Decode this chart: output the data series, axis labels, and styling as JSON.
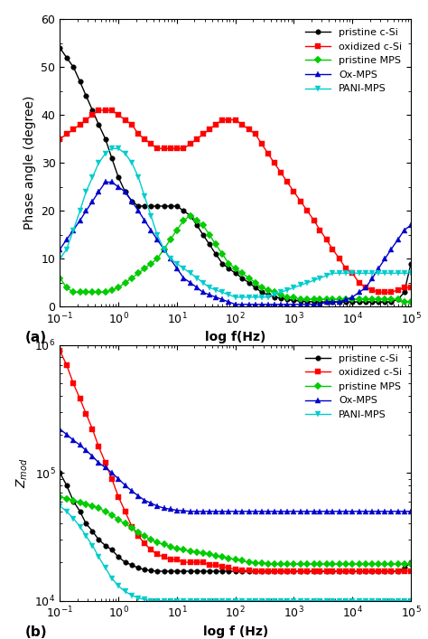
{
  "title_a": "(a)",
  "title_b": "(b)",
  "xlabel_a": "log f(Hz)",
  "xlabel_b": "log f (Hz)",
  "ylabel_a": "Phase angle (degree)",
  "ylabel_b": "Z_mod",
  "xlim": [
    0.1,
    100000.0
  ],
  "ylim_a": [
    0,
    60
  ],
  "ylim_b": [
    10000.0,
    1000000.0
  ],
  "legend_labels": [
    "pristine c-Si",
    "oxidized c-Si",
    "pristine MPS",
    "Ox-MPS",
    "PANI-MPS"
  ],
  "colors": [
    "#000000",
    "#ff0000",
    "#00cc00",
    "#0000cc",
    "#00cccc"
  ],
  "markers_a": [
    "o",
    "s",
    "D",
    "^",
    "v"
  ],
  "phase_pristine_cSi_x": [
    0.1,
    0.13,
    0.17,
    0.22,
    0.28,
    0.36,
    0.46,
    0.6,
    0.77,
    1.0,
    1.3,
    1.7,
    2.2,
    2.8,
    3.6,
    4.6,
    6.0,
    7.7,
    10,
    13,
    17,
    22,
    28,
    36,
    46,
    60,
    77,
    100,
    130,
    170,
    220,
    280,
    360,
    460,
    600,
    770,
    1000,
    1300,
    1700,
    2200,
    2800,
    3600,
    4600,
    6000,
    7700,
    10000,
    13000,
    17000,
    22000,
    28000,
    36000,
    46000,
    60000,
    77000,
    100000
  ],
  "phase_pristine_cSi_y": [
    54,
    52,
    50,
    47,
    44,
    41,
    38,
    35,
    31,
    27,
    24,
    22,
    21,
    21,
    21,
    21,
    21,
    21,
    21,
    20,
    19,
    17,
    15,
    13,
    11,
    9,
    8,
    7,
    6,
    5,
    4,
    3,
    2.5,
    2,
    1.8,
    1.5,
    1.3,
    1.2,
    1.1,
    1.0,
    1.0,
    1.0,
    1.0,
    1.0,
    1.0,
    1.0,
    1.0,
    1.0,
    1.0,
    1.0,
    1.0,
    1.0,
    1.5,
    3,
    9
  ],
  "phase_oxidized_cSi_x": [
    0.1,
    0.13,
    0.17,
    0.22,
    0.28,
    0.36,
    0.46,
    0.6,
    0.77,
    1.0,
    1.3,
    1.7,
    2.2,
    2.8,
    3.6,
    4.6,
    6.0,
    7.7,
    10,
    13,
    17,
    22,
    28,
    36,
    46,
    60,
    77,
    100,
    130,
    170,
    220,
    280,
    360,
    460,
    600,
    770,
    1000,
    1300,
    1700,
    2200,
    2800,
    3600,
    4600,
    6000,
    7700,
    10000,
    13000,
    17000,
    22000,
    28000,
    36000,
    46000,
    60000,
    77000,
    100000
  ],
  "phase_oxidized_cSi_y": [
    35,
    36,
    37,
    38,
    39,
    40,
    41,
    41,
    41,
    40,
    39,
    38,
    36,
    35,
    34,
    33,
    33,
    33,
    33,
    33,
    34,
    35,
    36,
    37,
    38,
    39,
    39,
    39,
    38,
    37,
    36,
    34,
    32,
    30,
    28,
    26,
    24,
    22,
    20,
    18,
    16,
    14,
    12,
    10,
    8,
    7,
    5,
    4,
    3.5,
    3,
    3,
    3,
    3.5,
    4,
    4
  ],
  "phase_pristine_MPS_x": [
    0.1,
    0.13,
    0.17,
    0.22,
    0.28,
    0.36,
    0.46,
    0.6,
    0.77,
    1.0,
    1.3,
    1.7,
    2.2,
    2.8,
    3.6,
    4.6,
    6.0,
    7.7,
    10,
    13,
    17,
    22,
    28,
    36,
    46,
    60,
    77,
    100,
    130,
    170,
    220,
    280,
    360,
    460,
    600,
    770,
    1000,
    1300,
    1700,
    2200,
    2800,
    3600,
    4600,
    6000,
    7700,
    10000,
    13000,
    17000,
    22000,
    28000,
    36000,
    46000,
    60000,
    77000,
    100000
  ],
  "phase_pristine_MPS_y": [
    6,
    4,
    3,
    3,
    3,
    3,
    3,
    3,
    3.5,
    4,
    5,
    6,
    7,
    8,
    9,
    10,
    12,
    14,
    16,
    18,
    19,
    18,
    17,
    15,
    13,
    11,
    9,
    8,
    7,
    6,
    5,
    4,
    3.5,
    3,
    2.5,
    2,
    2,
    1.5,
    1.5,
    1.5,
    1.5,
    1.5,
    1.5,
    1.5,
    1.5,
    1.5,
    1.5,
    1.5,
    1.5,
    1.5,
    1.5,
    1.5,
    1.5,
    1,
    1
  ],
  "phase_OxMPS_x": [
    0.1,
    0.13,
    0.17,
    0.22,
    0.28,
    0.36,
    0.46,
    0.6,
    0.77,
    1.0,
    1.3,
    1.7,
    2.2,
    2.8,
    3.6,
    4.6,
    6.0,
    7.7,
    10,
    13,
    17,
    22,
    28,
    36,
    46,
    60,
    77,
    100,
    130,
    170,
    220,
    280,
    360,
    460,
    600,
    770,
    1000,
    1300,
    1700,
    2200,
    2800,
    3600,
    4600,
    6000,
    7700,
    10000,
    13000,
    17000,
    22000,
    28000,
    36000,
    46000,
    60000,
    77000,
    100000
  ],
  "phase_OxMPS_y": [
    12,
    14,
    16,
    18,
    20,
    22,
    24,
    26,
    26,
    25,
    24,
    22,
    20,
    18,
    16,
    14,
    12,
    10,
    8,
    6,
    5,
    4,
    3,
    2.5,
    2,
    1.5,
    1,
    0.5,
    0.5,
    0.5,
    0.5,
    0.5,
    0.5,
    0.5,
    0.5,
    0.5,
    0.5,
    0.5,
    0.5,
    0.5,
    0.5,
    1,
    1,
    1,
    1.5,
    2,
    3,
    4,
    6,
    8,
    10,
    12,
    14,
    16,
    17
  ],
  "phase_PANIMPS_x": [
    0.1,
    0.13,
    0.17,
    0.22,
    0.28,
    0.36,
    0.46,
    0.6,
    0.77,
    1.0,
    1.3,
    1.7,
    2.2,
    2.8,
    3.6,
    4.6,
    6.0,
    7.7,
    10,
    13,
    17,
    22,
    28,
    36,
    46,
    60,
    77,
    100,
    130,
    170,
    220,
    280,
    360,
    460,
    600,
    770,
    1000,
    1300,
    1700,
    2200,
    2800,
    3600,
    4600,
    6000,
    7700,
    10000,
    13000,
    17000,
    22000,
    28000,
    36000,
    46000,
    60000,
    77000,
    100000
  ],
  "phase_PANIMPS_y": [
    10,
    12,
    16,
    20,
    24,
    27,
    30,
    32,
    33,
    33,
    32,
    30,
    27,
    23,
    19,
    15,
    12,
    10,
    9,
    8,
    7,
    6,
    5,
    4,
    3.5,
    3,
    2.5,
    2,
    2,
    2,
    2,
    2,
    2,
    2.5,
    3,
    3.5,
    4,
    4.5,
    5,
    5.5,
    6,
    6.5,
    7,
    7,
    7,
    7,
    7,
    7,
    7,
    7,
    7,
    7,
    7,
    7,
    7
  ],
  "mod_pristine_cSi_x": [
    0.1,
    0.13,
    0.17,
    0.22,
    0.28,
    0.36,
    0.46,
    0.6,
    0.77,
    1.0,
    1.3,
    1.7,
    2.2,
    2.8,
    3.6,
    4.6,
    6.0,
    7.7,
    10,
    13,
    17,
    22,
    28,
    36,
    46,
    60,
    77,
    100,
    130,
    170,
    220,
    280,
    360,
    460,
    600,
    770,
    1000,
    1300,
    1700,
    2200,
    2800,
    3600,
    4600,
    6000,
    7700,
    10000,
    13000,
    17000,
    22000,
    28000,
    36000,
    46000,
    60000,
    77000,
    100000
  ],
  "mod_pristine_cSi_y": [
    100000.0,
    80000.0,
    60000.0,
    50000.0,
    40000.0,
    35000.0,
    30000.0,
    27000.0,
    25000.0,
    22000.0,
    20000.0,
    19000.0,
    18000.0,
    17500.0,
    17200.0,
    17000.0,
    17000.0,
    17000.0,
    17000.0,
    17000.0,
    17000.0,
    17000.0,
    17000.0,
    17000.0,
    17000.0,
    17000.0,
    17000.0,
    17000.0,
    17000.0,
    17000.0,
    17000.0,
    17000.0,
    17000.0,
    17000.0,
    17000.0,
    17000.0,
    17000.0,
    17000.0,
    17000.0,
    17000.0,
    17000.0,
    17000.0,
    17000.0,
    17000.0,
    17000.0,
    17000.0,
    17000.0,
    17000.0,
    17000.0,
    17000.0,
    17000.0,
    17000.0,
    17000.0,
    18000.0,
    20000.0
  ],
  "mod_oxidized_cSi_x": [
    0.1,
    0.13,
    0.17,
    0.22,
    0.28,
    0.36,
    0.46,
    0.6,
    0.77,
    1.0,
    1.3,
    1.7,
    2.2,
    2.8,
    3.6,
    4.6,
    6.0,
    7.7,
    10,
    13,
    17,
    22,
    28,
    36,
    46,
    60,
    77,
    100,
    130,
    170,
    220,
    280,
    360,
    460,
    600,
    770,
    1000,
    1300,
    1700,
    2200,
    2800,
    3600,
    4600,
    6000,
    7700,
    10000,
    13000,
    17000,
    22000,
    28000,
    36000,
    46000,
    60000,
    77000,
    100000
  ],
  "mod_oxidized_cSi_y": [
    900000.0,
    700000.0,
    500000.0,
    380000.0,
    290000.0,
    220000.0,
    160000.0,
    120000.0,
    90000.0,
    65000.0,
    50000.0,
    38000.0,
    32000.0,
    28000.0,
    25000.0,
    23000.0,
    22000.0,
    21000.0,
    21000.0,
    20000.0,
    20000.0,
    20000.0,
    20000.0,
    19000.0,
    19000.0,
    18500.0,
    18000.0,
    17500.0,
    17300.0,
    17200.0,
    17100.0,
    17100.0,
    17100.0,
    17100.0,
    17100.0,
    17100.0,
    17100.0,
    17100.0,
    17100.0,
    17100.0,
    17100.0,
    17100.0,
    17100.0,
    17100.0,
    17100.0,
    17100.0,
    17100.0,
    17100.0,
    17100.0,
    17100.0,
    17100.0,
    17100.0,
    17100.0,
    17100.0,
    17100.0
  ],
  "mod_pristine_MPS_x": [
    0.1,
    0.13,
    0.17,
    0.22,
    0.28,
    0.36,
    0.46,
    0.6,
    0.77,
    1.0,
    1.3,
    1.7,
    2.2,
    2.8,
    3.6,
    4.6,
    6.0,
    7.7,
    10,
    13,
    17,
    22,
    28,
    36,
    46,
    60,
    77,
    100,
    130,
    170,
    220,
    280,
    360,
    460,
    600,
    770,
    1000,
    1300,
    1700,
    2200,
    2800,
    3600,
    4600,
    6000,
    7700,
    10000,
    13000,
    17000,
    22000,
    28000,
    36000,
    46000,
    60000,
    77000,
    100000
  ],
  "mod_pristine_MPS_y": [
    65000.0,
    63000.0,
    61000.0,
    59000.0,
    57000.0,
    55000.0,
    53000.0,
    50000.0,
    47000.0,
    43000.0,
    40000.0,
    37000.0,
    34000.0,
    32000.0,
    30000.0,
    28500.0,
    27500.0,
    26500.0,
    25500.0,
    25000.0,
    24500.0,
    24000.0,
    23500.0,
    23000.0,
    22500.0,
    22000.0,
    21500.0,
    21000.0,
    20500.0,
    20000.0,
    19800.0,
    19600.0,
    19500.0,
    19400.0,
    19300.0,
    19300.0,
    19300.0,
    19300.0,
    19300.0,
    19300.0,
    19300.0,
    19300.0,
    19300.0,
    19300.0,
    19300.0,
    19300.0,
    19300.0,
    19300.0,
    19300.0,
    19300.0,
    19300.0,
    19300.0,
    19300.0,
    19300.0,
    19300.0
  ],
  "mod_OxMPS_x": [
    0.1,
    0.13,
    0.17,
    0.22,
    0.28,
    0.36,
    0.46,
    0.6,
    0.77,
    1.0,
    1.3,
    1.7,
    2.2,
    2.8,
    3.6,
    4.6,
    6.0,
    7.7,
    10,
    13,
    17,
    22,
    28,
    36,
    46,
    60,
    77,
    100,
    130,
    170,
    220,
    280,
    360,
    460,
    600,
    770,
    1000,
    1300,
    1700,
    2200,
    2800,
    3600,
    4600,
    6000,
    7700,
    10000,
    13000,
    17000,
    22000,
    28000,
    36000,
    46000,
    60000,
    77000,
    100000
  ],
  "mod_OxMPS_y": [
    220000.0,
    200000.0,
    180000.0,
    165000.0,
    150000.0,
    135000.0,
    120000.0,
    110000.0,
    100000.0,
    90000.0,
    80000.0,
    72000.0,
    66000.0,
    61000.0,
    58000.0,
    55000.0,
    53000.0,
    52000.0,
    51000.0,
    50500.0,
    50000.0,
    50000.0,
    50000.0,
    50000.0,
    50000.0,
    50000.0,
    50000.0,
    50000.0,
    50000.0,
    50000.0,
    50000.0,
    50000.0,
    50000.0,
    50000.0,
    50000.0,
    50000.0,
    50000.0,
    50000.0,
    50000.0,
    50000.0,
    50000.0,
    50000.0,
    50000.0,
    50000.0,
    50000.0,
    50000.0,
    50000.0,
    50000.0,
    50000.0,
    50000.0,
    50000.0,
    50000.0,
    50000.0,
    50000.0,
    50000.0
  ],
  "mod_PANIMPS_x": [
    0.1,
    0.13,
    0.17,
    0.22,
    0.28,
    0.36,
    0.46,
    0.6,
    0.77,
    1.0,
    1.3,
    1.7,
    2.2,
    2.8,
    3.6,
    4.6,
    6.0,
    7.7,
    10,
    13,
    17,
    22,
    28,
    36,
    46,
    60,
    77,
    100,
    130,
    170,
    220,
    280,
    360,
    460,
    600,
    770,
    1000,
    1300,
    1700,
    2200,
    2800,
    3600,
    4600,
    6000,
    7700,
    10000,
    13000,
    17000,
    22000,
    28000,
    36000,
    46000,
    60000,
    77000,
    100000
  ],
  "mod_PANIMPS_y": [
    55000.0,
    50000.0,
    44000.0,
    38000.0,
    32000.0,
    27000.0,
    22000.0,
    18000.0,
    15000.0,
    13000.0,
    11800.0,
    11000.0,
    10500.0,
    10200.0,
    10000.0,
    10000.0,
    10000.0,
    10000.0,
    10000.0,
    10000.0,
    10000.0,
    10000.0,
    10000.0,
    10000.0,
    10000.0,
    10000.0,
    10000.0,
    10000.0,
    10000.0,
    10000.0,
    10000.0,
    10000.0,
    10000.0,
    10000.0,
    10000.0,
    10000.0,
    10000.0,
    10000.0,
    10000.0,
    10000.0,
    10000.0,
    10000.0,
    10000.0,
    10000.0,
    10000.0,
    10000.0,
    10000.0,
    10000.0,
    10000.0,
    10000.0,
    10000.0,
    10000.0,
    10000.0,
    10000.0,
    10000.0
  ]
}
